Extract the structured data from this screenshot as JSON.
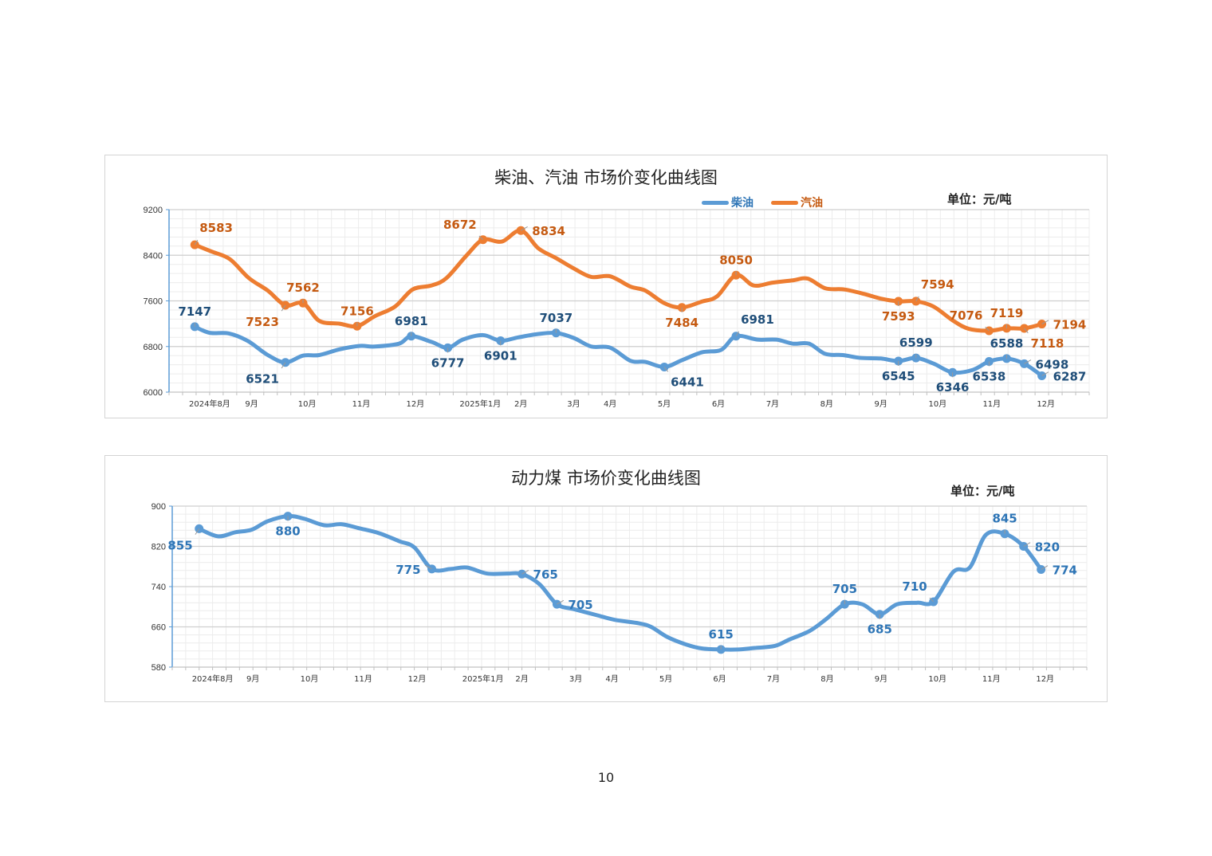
{
  "page_number": "10",
  "chart_data": [
    {
      "type": "line",
      "title": "柴油、汽油 市场价变化曲线图",
      "unit": "单位：元/吨",
      "ylim": [
        6000,
        9200
      ],
      "yticks": [
        6000,
        6800,
        7600,
        8400,
        9200
      ],
      "xlim": [
        0,
        68
      ],
      "xlabel": "",
      "ylabel": "",
      "grid": true,
      "legend_position": "top-center",
      "x_ticks": [
        {
          "x": 3.0,
          "label": "2024年8月"
        },
        {
          "x": 6.1,
          "label": "9月"
        },
        {
          "x": 10.2,
          "label": "10月"
        },
        {
          "x": 14.2,
          "label": "11月"
        },
        {
          "x": 18.2,
          "label": "12月"
        },
        {
          "x": 23.0,
          "label": "2025年1月"
        },
        {
          "x": 26.0,
          "label": "2月"
        },
        {
          "x": 29.9,
          "label": "3月"
        },
        {
          "x": 32.6,
          "label": "4月"
        },
        {
          "x": 36.6,
          "label": "5月"
        },
        {
          "x": 40.6,
          "label": "6月"
        },
        {
          "x": 44.6,
          "label": "7月"
        },
        {
          "x": 48.6,
          "label": "8月"
        },
        {
          "x": 52.6,
          "label": "9月"
        },
        {
          "x": 56.8,
          "label": "10月"
        },
        {
          "x": 60.8,
          "label": "11月"
        },
        {
          "x": 64.8,
          "label": "12月"
        }
      ],
      "series": [
        {
          "name": "柴油",
          "color": "#5b9bd5",
          "label_color": "#1f4e79",
          "points": [
            [
              1.9,
              7147
            ],
            [
              3.0,
              7040
            ],
            [
              4.4,
              7030
            ],
            [
              5.8,
              6900
            ],
            [
              7.3,
              6650
            ],
            [
              8.6,
              6521
            ],
            [
              9.9,
              6640
            ],
            [
              11.1,
              6650
            ],
            [
              12.6,
              6750
            ],
            [
              14.1,
              6810
            ],
            [
              15.2,
              6800
            ],
            [
              17.0,
              6850
            ],
            [
              17.9,
              6981
            ],
            [
              19.4,
              6880
            ],
            [
              20.6,
              6777
            ],
            [
              21.7,
              6920
            ],
            [
              23.2,
              7000
            ],
            [
              24.5,
              6901
            ],
            [
              25.8,
              6960
            ],
            [
              27.3,
              7020
            ],
            [
              28.6,
              7037
            ],
            [
              29.9,
              6950
            ],
            [
              31.2,
              6800
            ],
            [
              32.6,
              6780
            ],
            [
              34.1,
              6550
            ],
            [
              35.2,
              6530
            ],
            [
              36.6,
              6441
            ],
            [
              37.9,
              6560
            ],
            [
              39.4,
              6700
            ],
            [
              40.8,
              6740
            ],
            [
              41.9,
              6981
            ],
            [
              43.5,
              6920
            ],
            [
              44.9,
              6920
            ],
            [
              46.1,
              6850
            ],
            [
              47.3,
              6850
            ],
            [
              48.5,
              6670
            ],
            [
              49.8,
              6650
            ],
            [
              51.1,
              6600
            ],
            [
              52.6,
              6590
            ],
            [
              53.9,
              6545
            ],
            [
              55.2,
              6599
            ],
            [
              56.5,
              6500
            ],
            [
              57.9,
              6346
            ],
            [
              59.4,
              6390
            ],
            [
              60.6,
              6538
            ],
            [
              61.9,
              6588
            ],
            [
              63.2,
              6498
            ],
            [
              64.5,
              6287
            ]
          ],
          "labels": [
            {
              "x": 1.9,
              "value": 7147,
              "text": "7147",
              "pos": "above"
            },
            {
              "x": 8.6,
              "value": 6521,
              "text": "6521",
              "pos": "below-left"
            },
            {
              "x": 17.9,
              "value": 6981,
              "text": "6981",
              "pos": "above"
            },
            {
              "x": 20.6,
              "value": 6777,
              "text": "6777",
              "pos": "below"
            },
            {
              "x": 24.5,
              "value": 6901,
              "text": "6901",
              "pos": "below"
            },
            {
              "x": 28.6,
              "value": 7037,
              "text": "7037",
              "pos": "above"
            },
            {
              "x": 36.6,
              "value": 6441,
              "text": "6441",
              "pos": "below-right"
            },
            {
              "x": 41.9,
              "value": 6981,
              "text": "6981",
              "pos": "above-right"
            },
            {
              "x": 53.9,
              "value": 6545,
              "text": "6545",
              "pos": "below"
            },
            {
              "x": 55.2,
              "value": 6599,
              "text": "6599",
              "pos": "above"
            },
            {
              "x": 57.9,
              "value": 6346,
              "text": "6346",
              "pos": "below"
            },
            {
              "x": 60.6,
              "value": 6538,
              "text": "6538",
              "pos": "below"
            },
            {
              "x": 61.9,
              "value": 6588,
              "text": "6588",
              "pos": "above"
            },
            {
              "x": 63.2,
              "value": 6498,
              "text": "6498",
              "pos": "right"
            },
            {
              "x": 64.5,
              "value": 6287,
              "text": "6287",
              "pos": "right"
            }
          ]
        },
        {
          "name": "汽油",
          "color": "#ed7d31",
          "label_color": "#c55a11",
          "points": [
            [
              1.9,
              8583
            ],
            [
              3.2,
              8460
            ],
            [
              4.5,
              8330
            ],
            [
              5.9,
              8000
            ],
            [
              7.3,
              7780
            ],
            [
              8.6,
              7523
            ],
            [
              9.9,
              7562
            ],
            [
              11.1,
              7250
            ],
            [
              12.6,
              7200
            ],
            [
              13.9,
              7156
            ],
            [
              15.2,
              7330
            ],
            [
              16.7,
              7500
            ],
            [
              18.0,
              7800
            ],
            [
              19.4,
              7870
            ],
            [
              20.5,
              8000
            ],
            [
              22.0,
              8400
            ],
            [
              23.2,
              8672
            ],
            [
              24.6,
              8640
            ],
            [
              26.0,
              8834
            ],
            [
              27.3,
              8520
            ],
            [
              28.6,
              8350
            ],
            [
              29.9,
              8170
            ],
            [
              31.2,
              8020
            ],
            [
              32.6,
              8030
            ],
            [
              34.1,
              7850
            ],
            [
              35.2,
              7780
            ],
            [
              36.6,
              7560
            ],
            [
              37.9,
              7484
            ],
            [
              39.4,
              7590
            ],
            [
              40.5,
              7680
            ],
            [
              41.9,
              8050
            ],
            [
              43.2,
              7870
            ],
            [
              44.6,
              7920
            ],
            [
              46.1,
              7960
            ],
            [
              47.2,
              7990
            ],
            [
              48.5,
              7820
            ],
            [
              49.9,
              7800
            ],
            [
              51.4,
              7720
            ],
            [
              52.6,
              7640
            ],
            [
              53.9,
              7593
            ],
            [
              55.2,
              7594
            ],
            [
              56.5,
              7500
            ],
            [
              57.9,
              7260
            ],
            [
              59.1,
              7110
            ],
            [
              60.6,
              7076
            ],
            [
              61.9,
              7119
            ],
            [
              63.2,
              7118
            ],
            [
              64.5,
              7194
            ]
          ],
          "labels": [
            {
              "x": 1.9,
              "value": 8583,
              "text": "8583",
              "pos": "above-right"
            },
            {
              "x": 8.6,
              "value": 7523,
              "text": "7523",
              "pos": "below-left"
            },
            {
              "x": 9.9,
              "value": 7562,
              "text": "7562",
              "pos": "above"
            },
            {
              "x": 13.9,
              "value": 7156,
              "text": "7156",
              "pos": "above"
            },
            {
              "x": 23.2,
              "value": 8672,
              "text": "8672",
              "pos": "above-left"
            },
            {
              "x": 26.0,
              "value": 8834,
              "text": "8834",
              "pos": "right"
            },
            {
              "x": 37.9,
              "value": 7484,
              "text": "7484",
              "pos": "below"
            },
            {
              "x": 41.9,
              "value": 8050,
              "text": "8050",
              "pos": "above"
            },
            {
              "x": 53.9,
              "value": 7593,
              "text": "7593",
              "pos": "below"
            },
            {
              "x": 55.2,
              "value": 7594,
              "text": "7594",
              "pos": "above-right"
            },
            {
              "x": 60.6,
              "value": 7076,
              "text": "7076",
              "pos": "above-left"
            },
            {
              "x": 61.9,
              "value": 7119,
              "text": "7119",
              "pos": "above"
            },
            {
              "x": 63.2,
              "value": 7118,
              "text": "7118",
              "pos": "below-right"
            },
            {
              "x": 64.5,
              "value": 7194,
              "text": "7194",
              "pos": "right"
            }
          ]
        }
      ]
    },
    {
      "type": "line",
      "title": "动力煤 市场价变化曲线图",
      "unit": "单位：元/吨",
      "ylim": [
        580,
        900
      ],
      "yticks": [
        580,
        660,
        740,
        820,
        900
      ],
      "xlim": [
        0,
        68
      ],
      "xlabel": "",
      "ylabel": "",
      "grid": true,
      "x_ticks": [
        {
          "x": 3.0,
          "label": "2024年8月"
        },
        {
          "x": 6.0,
          "label": "9月"
        },
        {
          "x": 10.2,
          "label": "10月"
        },
        {
          "x": 14.2,
          "label": "11月"
        },
        {
          "x": 18.2,
          "label": "12月"
        },
        {
          "x": 23.1,
          "label": "2025年1月"
        },
        {
          "x": 26.0,
          "label": "2月"
        },
        {
          "x": 30.0,
          "label": "3月"
        },
        {
          "x": 32.7,
          "label": "4月"
        },
        {
          "x": 36.7,
          "label": "5月"
        },
        {
          "x": 40.7,
          "label": "6月"
        },
        {
          "x": 44.7,
          "label": "7月"
        },
        {
          "x": 48.7,
          "label": "8月"
        },
        {
          "x": 52.7,
          "label": "9月"
        },
        {
          "x": 56.9,
          "label": "10月"
        },
        {
          "x": 60.9,
          "label": "11月"
        },
        {
          "x": 64.9,
          "label": "12月"
        }
      ],
      "series": [
        {
          "name": "动力煤",
          "color": "#5b9bd5",
          "label_color": "#2e75b6",
          "points": [
            [
              2.0,
              855
            ],
            [
              3.4,
              840
            ],
            [
              4.7,
              848
            ],
            [
              5.9,
              853
            ],
            [
              7.1,
              870
            ],
            [
              8.6,
              880
            ],
            [
              9.8,
              875
            ],
            [
              11.3,
              862
            ],
            [
              12.6,
              864
            ],
            [
              13.9,
              856
            ],
            [
              15.4,
              846
            ],
            [
              16.9,
              830
            ],
            [
              18.0,
              818
            ],
            [
              19.3,
              775
            ],
            [
              20.7,
              775
            ],
            [
              21.9,
              778
            ],
            [
              23.4,
              766
            ],
            [
              24.9,
              766
            ],
            [
              26.0,
              765
            ],
            [
              27.3,
              745
            ],
            [
              28.6,
              705
            ],
            [
              29.9,
              695
            ],
            [
              31.6,
              683
            ],
            [
              32.9,
              674
            ],
            [
              34.7,
              667
            ],
            [
              35.6,
              660
            ],
            [
              36.8,
              640
            ],
            [
              38.2,
              625
            ],
            [
              39.4,
              617
            ],
            [
              40.8,
              615
            ],
            [
              42.1,
              615
            ],
            [
              43.3,
              618
            ],
            [
              44.8,
              622
            ],
            [
              45.9,
              635
            ],
            [
              47.4,
              652
            ],
            [
              48.6,
              675
            ],
            [
              50.0,
              705
            ],
            [
              51.3,
              705
            ],
            [
              52.6,
              685
            ],
            [
              53.9,
              705
            ],
            [
              55.4,
              708
            ],
            [
              56.6,
              710
            ],
            [
              58.1,
              770
            ],
            [
              59.3,
              778
            ],
            [
              60.5,
              843
            ],
            [
              61.9,
              845
            ],
            [
              63.3,
              820
            ],
            [
              64.6,
              774
            ]
          ],
          "labels": [
            {
              "x": 2.0,
              "value": 855,
              "text": "855",
              "pos": "below-left"
            },
            {
              "x": 8.6,
              "value": 880,
              "text": "880",
              "pos": "below"
            },
            {
              "x": 19.3,
              "value": 775,
              "text": "775",
              "pos": "left"
            },
            {
              "x": 26.0,
              "value": 765,
              "text": "765",
              "pos": "right"
            },
            {
              "x": 28.6,
              "value": 705,
              "text": "705",
              "pos": "right"
            },
            {
              "x": 40.8,
              "value": 615,
              "text": "615",
              "pos": "above"
            },
            {
              "x": 50.0,
              "value": 705,
              "text": "705",
              "pos": "above"
            },
            {
              "x": 52.6,
              "value": 685,
              "text": "685",
              "pos": "below"
            },
            {
              "x": 56.6,
              "value": 710,
              "text": "710",
              "pos": "above-left"
            },
            {
              "x": 61.9,
              "value": 845,
              "text": "845",
              "pos": "above"
            },
            {
              "x": 63.3,
              "value": 820,
              "text": "820",
              "pos": "right"
            },
            {
              "x": 64.6,
              "value": 774,
              "text": "774",
              "pos": "right"
            }
          ]
        }
      ]
    }
  ]
}
